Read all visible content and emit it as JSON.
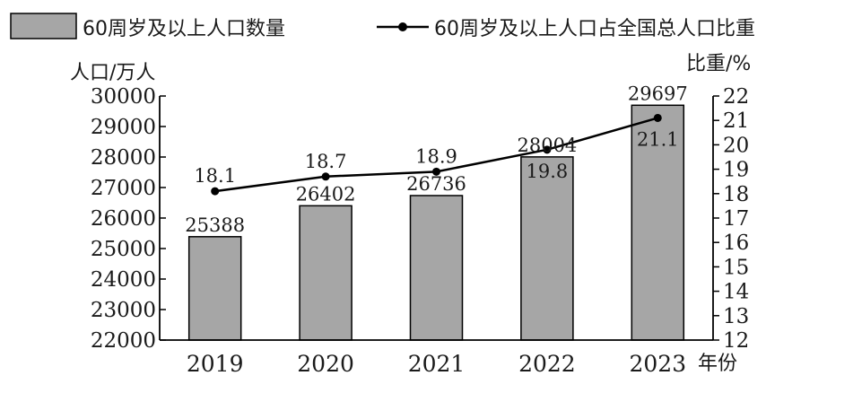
{
  "chart_data": {
    "type": "bar+line",
    "categories": [
      "2019",
      "2020",
      "2021",
      "2022",
      "2023"
    ],
    "series": [
      {
        "name": "60周岁及以上人口数量",
        "type": "bar",
        "axis": "left",
        "values": [
          25388,
          26402,
          26736,
          28004,
          29697
        ],
        "color": "#a6a6a6"
      },
      {
        "name": "60周岁及以上人口占全国总人口比重",
        "type": "line",
        "axis": "right",
        "values": [
          18.1,
          18.7,
          18.9,
          19.8,
          21.1
        ],
        "color": "#000000"
      }
    ],
    "y_left": {
      "label": "人口/万人",
      "ylim": [
        22000,
        30000
      ],
      "ticks": [
        "22000",
        "23000",
        "24000",
        "25000",
        "26000",
        "27000",
        "28000",
        "29000",
        "30000"
      ]
    },
    "y_right": {
      "label": "比重/%",
      "ylim": [
        12,
        22
      ],
      "ticks": [
        "12",
        "13",
        "14",
        "15",
        "16",
        "17",
        "18",
        "19",
        "20",
        "21",
        "22"
      ]
    },
    "xlabel": "年份",
    "bar_labels": [
      "25388",
      "26402",
      "26736",
      "28004",
      "29697"
    ],
    "line_labels": [
      "18.1",
      "18.7",
      "18.9",
      "19.8",
      "21.1"
    ],
    "legend": {
      "position": "top",
      "items": [
        "60周岁及以上人口数量",
        "60周岁及以上人口占全国总人口比重"
      ]
    },
    "grid": false
  }
}
